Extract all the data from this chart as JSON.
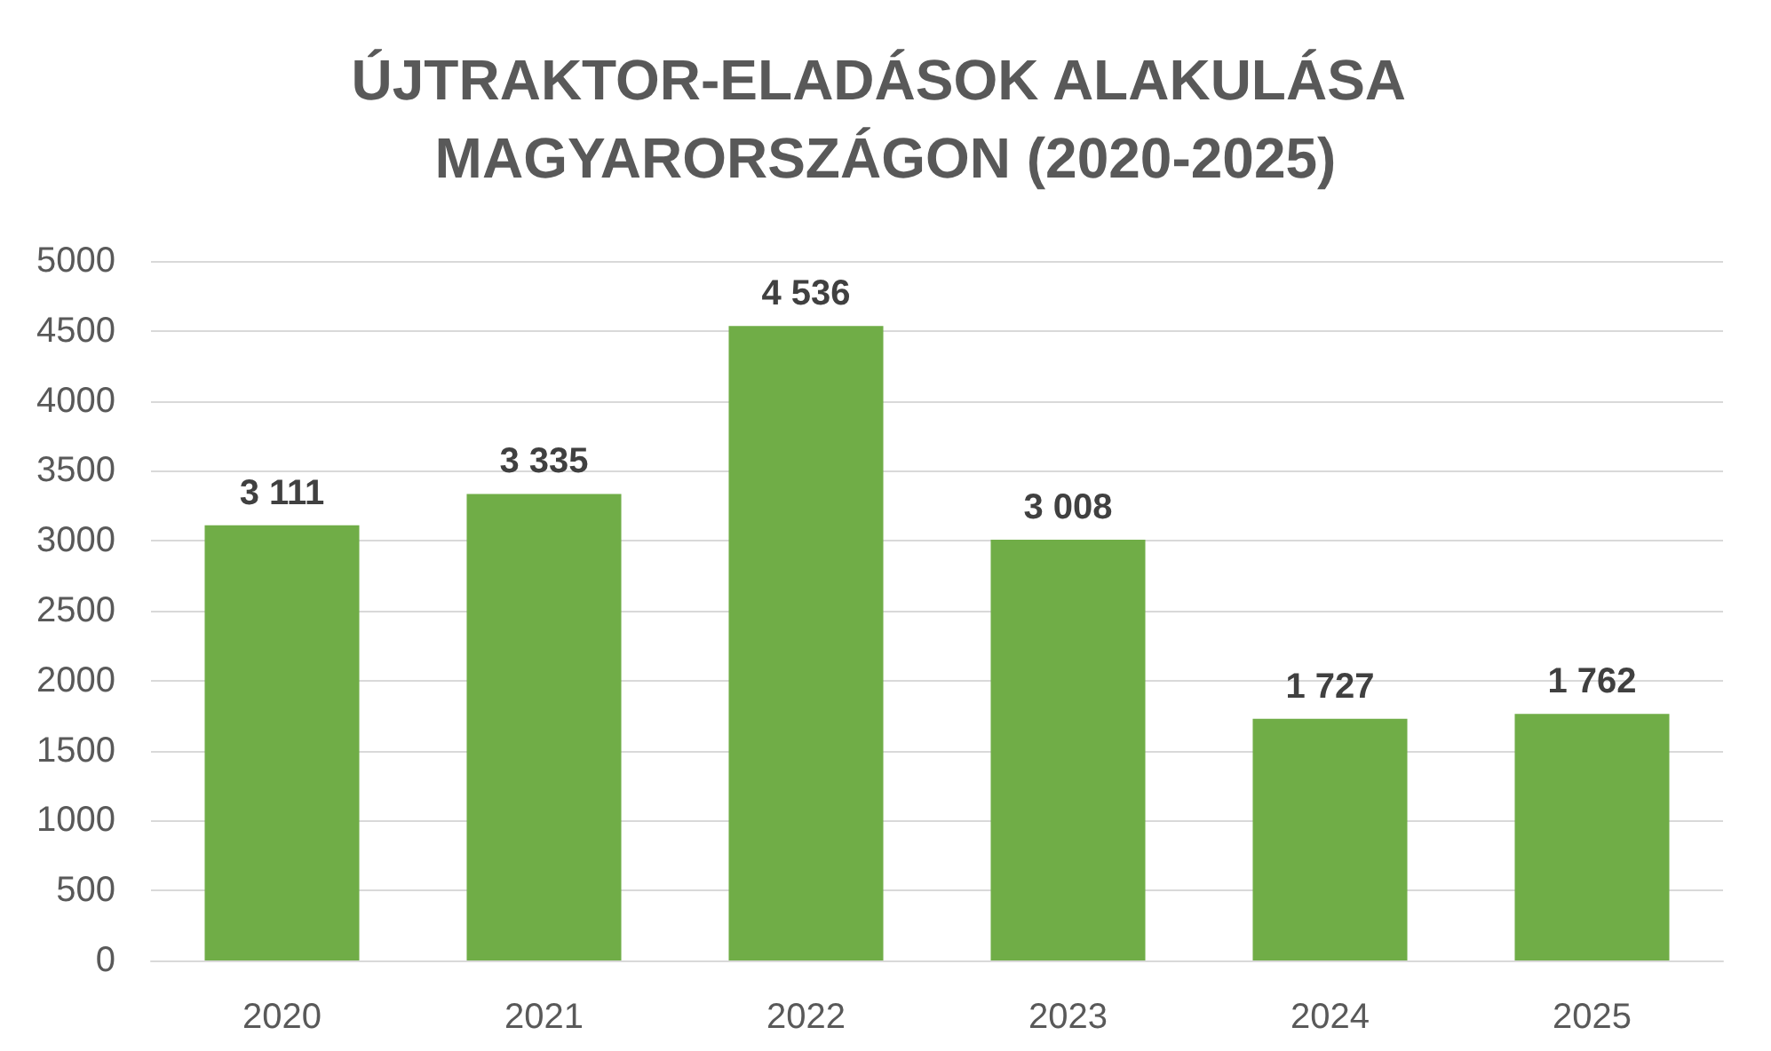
{
  "chart_data": {
    "type": "bar",
    "title": "ÚJTRAKTOR-ELADÁSOK ALAKULÁSA MAGYARORSZÁGON (2020-2025)",
    "categories": [
      "2020",
      "2021",
      "2022",
      "2023",
      "2024",
      "2025"
    ],
    "values": [
      3111,
      3335,
      4536,
      3008,
      1727,
      1762
    ],
    "value_labels": [
      "3 111",
      "3 335",
      "4 536",
      "3 008",
      "1 727",
      "1 762"
    ],
    "color": "#70ad47",
    "ylim": [
      0,
      5000
    ],
    "yticks": [
      0,
      500,
      1000,
      1500,
      2000,
      2500,
      3000,
      3500,
      4000,
      4500,
      5000
    ],
    "grid": "y"
  }
}
